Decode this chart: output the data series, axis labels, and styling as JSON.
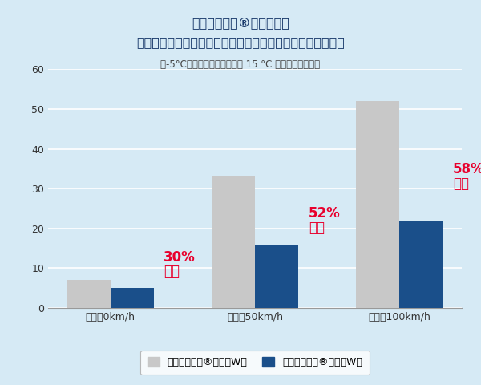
{
  "title_line1": "サンフォース®を利用した",
  "title_line2": "断熱構造の有無による消費電力シミュレーション結果の比較",
  "subtitle": "（-5°Cの環境下で表面温度を 15 °C に保持した場合）",
  "categories": [
    "車速：0km/h",
    "車速：50km/h",
    "車速：100km/h"
  ],
  "values_no": [
    7,
    33,
    52
  ],
  "values_with": [
    5,
    16,
    22
  ],
  "reduction_pct": [
    "30%",
    "52%",
    "58%"
  ],
  "reduction_label": "削減",
  "color_no": "#c8c8c8",
  "color_with": "#1a4f8a",
  "color_reduction": "#e8002d",
  "background_color": "#d6eaf5",
  "legend_bg": "#ffffff",
  "title_color": "#1a3a6b",
  "subtitle_color": "#444444",
  "ylim": [
    0,
    60
  ],
  "yticks": [
    0,
    10,
    20,
    30,
    40,
    50,
    60
  ],
  "legend_label_no": "サンフォース®なし（W）",
  "legend_label_with": "サンフォース®あり（W）",
  "bar_width": 0.3
}
